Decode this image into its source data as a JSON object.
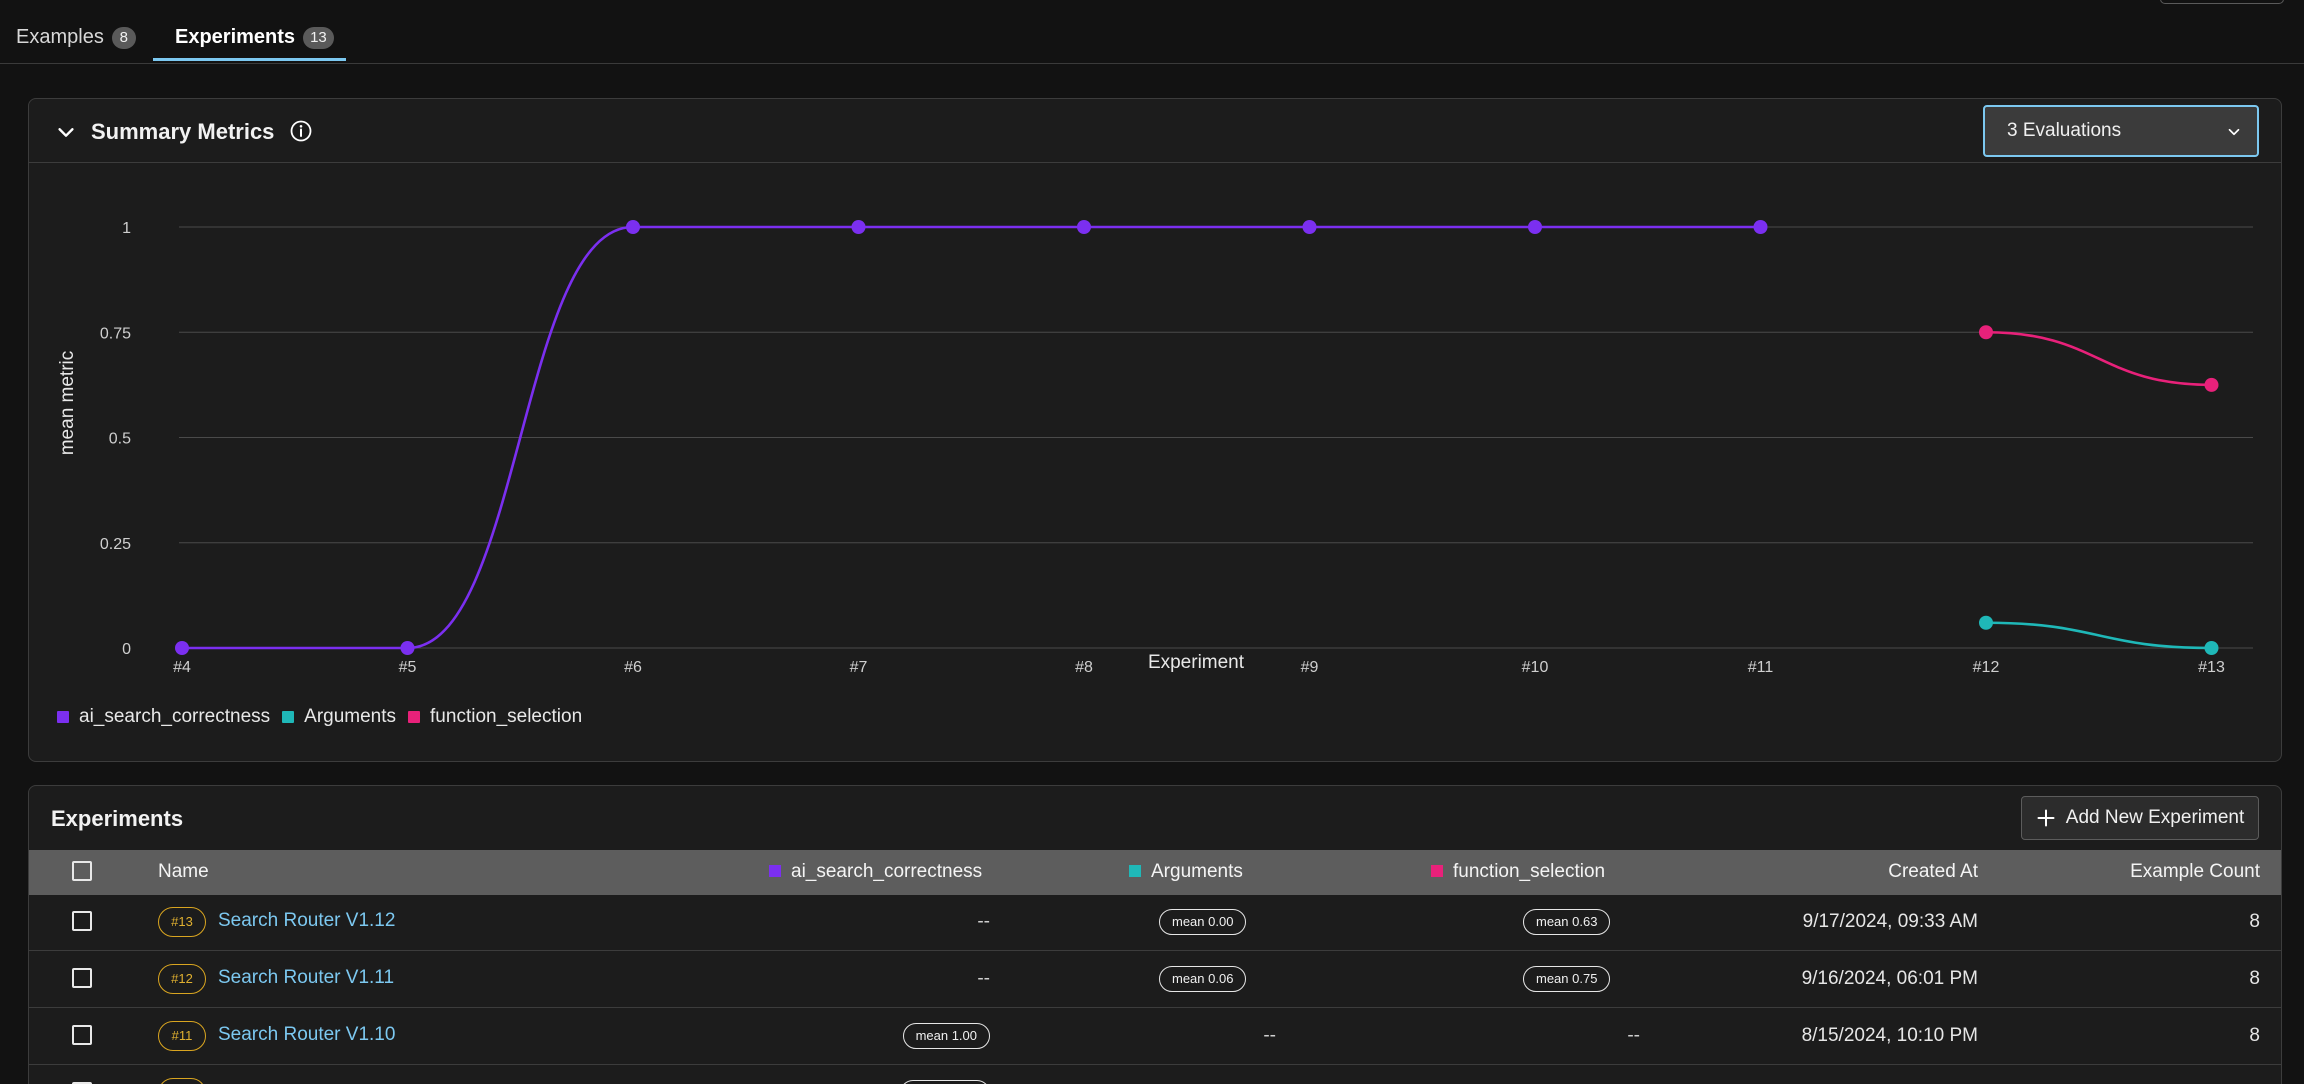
{
  "tabs": [
    {
      "label": "Examples",
      "count": "8"
    },
    {
      "label": "Experiments",
      "count": "13"
    }
  ],
  "summary": {
    "title": "Summary Metrics",
    "evaluations_select": "3 Evaluations"
  },
  "chart_data": {
    "type": "line",
    "xlabel": "Experiment",
    "ylabel": "mean metric",
    "categories": [
      "#4",
      "#5",
      "#6",
      "#7",
      "#8",
      "#9",
      "#10",
      "#11",
      "#12",
      "#13"
    ],
    "y_ticks": [
      "0",
      "0.25",
      "0.5",
      "0.75",
      "1"
    ],
    "ylim": [
      0,
      1
    ],
    "grid": true,
    "legend_position": "bottom-left",
    "series": [
      {
        "name": "ai_search_correctness",
        "color": "#7b2ff0",
        "values": [
          0,
          0,
          1,
          1,
          1,
          1,
          1,
          1,
          null,
          null
        ]
      },
      {
        "name": "Arguments",
        "color": "#1fb8b8",
        "values": [
          null,
          null,
          null,
          null,
          null,
          null,
          null,
          null,
          0.06,
          0
        ]
      },
      {
        "name": "function_selection",
        "color": "#e8217a",
        "values": [
          null,
          null,
          null,
          null,
          null,
          null,
          null,
          null,
          0.75,
          0.625
        ]
      }
    ]
  },
  "experiments": {
    "title": "Experiments",
    "add_button": "Add New Experiment",
    "columns": {
      "name": "Name",
      "ai_search_correctness": "ai_search_correctness",
      "arguments": "Arguments",
      "function_selection": "function_selection",
      "created_at": "Created At",
      "example_count": "Example Count"
    },
    "rows": [
      {
        "badge": "#13",
        "name": "Search Router V1.12",
        "ai_search_correctness": "--",
        "arguments": "mean 0.00",
        "function_selection": "mean 0.63",
        "created_at": "9/17/2024, 09:33 AM",
        "example_count": "8"
      },
      {
        "badge": "#12",
        "name": "Search Router V1.11",
        "ai_search_correctness": "--",
        "arguments": "mean 0.06",
        "function_selection": "mean 0.75",
        "created_at": "9/16/2024, 06:01 PM",
        "example_count": "8"
      },
      {
        "badge": "#11",
        "name": "Search Router V1.10",
        "ai_search_correctness": "mean 1.00",
        "arguments": "--",
        "function_selection": "--",
        "created_at": "8/15/2024, 10:10 PM",
        "example_count": "8"
      }
    ]
  }
}
